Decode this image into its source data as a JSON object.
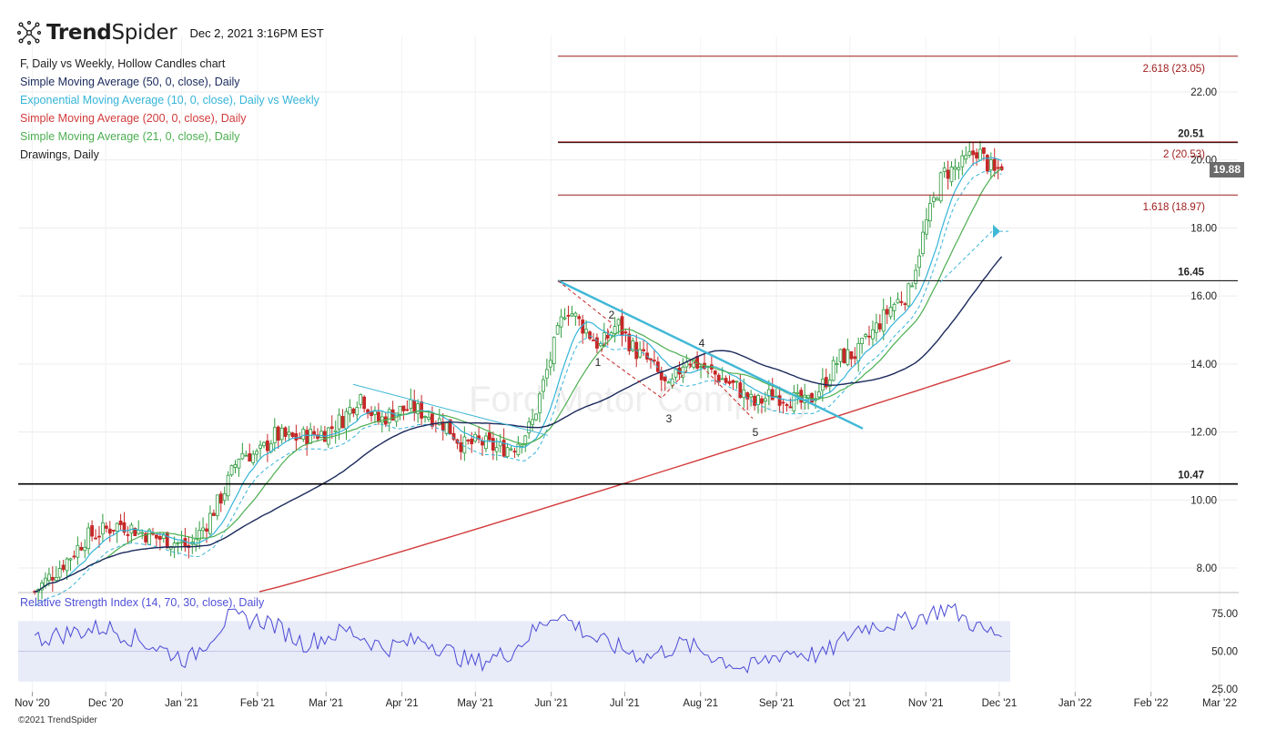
{
  "header": {
    "brand_bold": "Trend",
    "brand_light": "Spider",
    "timestamp": "Dec 2, 2021 3:16PM EST",
    "copyright": "©2021 TrendSpider"
  },
  "legend": [
    {
      "text": "F, Daily vs Weekly, Hollow Candles chart",
      "color": "#222222"
    },
    {
      "text": "Simple Moving Average (50, 0, close), Daily",
      "color": "#1b2a5c"
    },
    {
      "text": "Exponential Moving Average (10, 0, close), Daily vs Weekly",
      "color": "#35b4d8"
    },
    {
      "text": "Simple Moving Average (200, 0, close), Daily",
      "color": "#d23b3b"
    },
    {
      "text": "Simple Moving Average (21, 0, close), Daily",
      "color": "#4caf50"
    },
    {
      "text": "Drawings, Daily",
      "color": "#222222"
    }
  ],
  "rsi_label": "Relative Strength Index (14, 70, 30, close), Daily",
  "watermark": "Ford Motor Company",
  "colors": {
    "up": "#2e9b3e",
    "down": "#c62828",
    "sma50": "#1b2a5c",
    "ema10": "#35b4d8",
    "sma200": "#d23b3b",
    "sma21": "#4caf50",
    "rsi": "#4a4ad6",
    "fib": "#a01c1c",
    "trend": "#40b8d6"
  },
  "chart_data": {
    "type": "candlestick",
    "ticker": "F",
    "price_axis": {
      "ticks": [
        "8.00",
        "10.00",
        "12.00",
        "14.00",
        "16.00",
        "18.00",
        "20.00",
        "22.00"
      ],
      "range": [
        7.3,
        23.6
      ]
    },
    "rsi_axis": {
      "ticks": [
        "25.00",
        "50.00",
        "75.00"
      ],
      "range": [
        25,
        82
      ],
      "band": [
        30,
        70
      ]
    },
    "x_axis": {
      "ticks": [
        "Nov '20",
        "Dec '20",
        "Jan '21",
        "Feb '21",
        "Mar '21",
        "Apr '21",
        "May '21",
        "Jun '21",
        "Jul '21",
        "Aug '21",
        "Sep '21",
        "Oct '21",
        "Nov '21",
        "Dec '21",
        "Jan '22",
        "Feb '22",
        "Mar '22"
      ]
    },
    "last_price": "19.88",
    "levels": [
      {
        "label": "2.618 (23.05)",
        "value": 23.05,
        "kind": "fib"
      },
      {
        "label": "20.51",
        "value": 20.51,
        "kind": "horizontal"
      },
      {
        "label": "2 (20.53)",
        "value": 20.53,
        "kind": "fib"
      },
      {
        "label": "1.618 (18.97)",
        "value": 18.97,
        "kind": "fib"
      },
      {
        "label": "16.45",
        "value": 16.45,
        "kind": "horizontal"
      },
      {
        "label": "10.47",
        "value": 10.47,
        "kind": "horizontal"
      }
    ],
    "wave_labels": [
      "1",
      "2",
      "3",
      "4",
      "5"
    ],
    "close_points": [
      [
        "2020-11-02",
        7.3
      ],
      [
        "2020-11-09",
        7.8
      ],
      [
        "2020-11-16",
        8.3
      ],
      [
        "2020-11-23",
        8.9
      ],
      [
        "2020-11-30",
        9.1
      ],
      [
        "2020-12-07",
        9.3
      ],
      [
        "2020-12-14",
        9.1
      ],
      [
        "2020-12-21",
        8.9
      ],
      [
        "2020-12-28",
        8.8
      ],
      [
        "2021-01-04",
        8.6
      ],
      [
        "2021-01-11",
        9.3
      ],
      [
        "2021-01-18",
        10.2
      ],
      [
        "2021-01-25",
        11.4
      ],
      [
        "2021-02-01",
        11.3
      ],
      [
        "2021-02-08",
        11.9
      ],
      [
        "2021-02-15",
        11.8
      ],
      [
        "2021-02-22",
        11.9
      ],
      [
        "2021-03-01",
        12.0
      ],
      [
        "2021-03-08",
        12.4
      ],
      [
        "2021-03-15",
        13.1
      ],
      [
        "2021-03-22",
        12.3
      ],
      [
        "2021-03-29",
        12.6
      ],
      [
        "2021-04-05",
        12.7
      ],
      [
        "2021-04-12",
        12.5
      ],
      [
        "2021-04-19",
        12.2
      ],
      [
        "2021-04-26",
        11.6
      ],
      [
        "2021-05-03",
        11.7
      ],
      [
        "2021-05-10",
        11.5
      ],
      [
        "2021-05-17",
        11.6
      ],
      [
        "2021-05-24",
        12.2
      ],
      [
        "2021-05-31",
        14.0
      ],
      [
        "2021-06-07",
        15.7
      ],
      [
        "2021-06-14",
        15.1
      ],
      [
        "2021-06-21",
        14.5
      ],
      [
        "2021-06-28",
        15.2
      ],
      [
        "2021-07-05",
        14.4
      ],
      [
        "2021-07-12",
        14.0
      ],
      [
        "2021-07-19",
        13.2
      ],
      [
        "2021-07-26",
        14.2
      ],
      [
        "2021-08-02",
        13.9
      ],
      [
        "2021-08-09",
        13.6
      ],
      [
        "2021-08-16",
        13.3
      ],
      [
        "2021-08-23",
        12.8
      ],
      [
        "2021-08-30",
        13.1
      ],
      [
        "2021-09-06",
        13.0
      ],
      [
        "2021-09-13",
        12.8
      ],
      [
        "2021-09-20",
        13.4
      ],
      [
        "2021-09-27",
        14.2
      ],
      [
        "2021-10-04",
        14.3
      ],
      [
        "2021-10-11",
        15.0
      ],
      [
        "2021-10-18",
        15.7
      ],
      [
        "2021-10-25",
        16.1
      ],
      [
        "2021-11-01",
        18.1
      ],
      [
        "2021-11-08",
        19.6
      ],
      [
        "2021-11-15",
        19.8
      ],
      [
        "2021-11-22",
        20.3
      ],
      [
        "2021-11-29",
        19.6
      ],
      [
        "2021-12-02",
        19.88
      ]
    ],
    "rsi_points": [
      [
        "2020-11-02",
        58
      ],
      [
        "2020-11-16",
        62
      ],
      [
        "2020-12-01",
        66
      ],
      [
        "2020-12-15",
        57
      ],
      [
        "2021-01-04",
        44
      ],
      [
        "2021-01-20",
        72
      ],
      [
        "2021-02-05",
        70
      ],
      [
        "2021-02-20",
        55
      ],
      [
        "2021-03-10",
        64
      ],
      [
        "2021-03-25",
        52
      ],
      [
        "2021-04-10",
        58
      ],
      [
        "2021-04-30",
        42
      ],
      [
        "2021-05-15",
        49
      ],
      [
        "2021-06-03",
        76
      ],
      [
        "2021-06-20",
        57
      ],
      [
        "2021-07-10",
        46
      ],
      [
        "2021-07-25",
        55
      ],
      [
        "2021-08-20",
        38
      ],
      [
        "2021-09-05",
        50
      ],
      [
        "2021-09-20",
        47
      ],
      [
        "2021-10-05",
        66
      ],
      [
        "2021-10-25",
        70
      ],
      [
        "2021-11-10",
        79
      ],
      [
        "2021-11-25",
        63
      ],
      [
        "2021-12-02",
        61
      ]
    ]
  }
}
